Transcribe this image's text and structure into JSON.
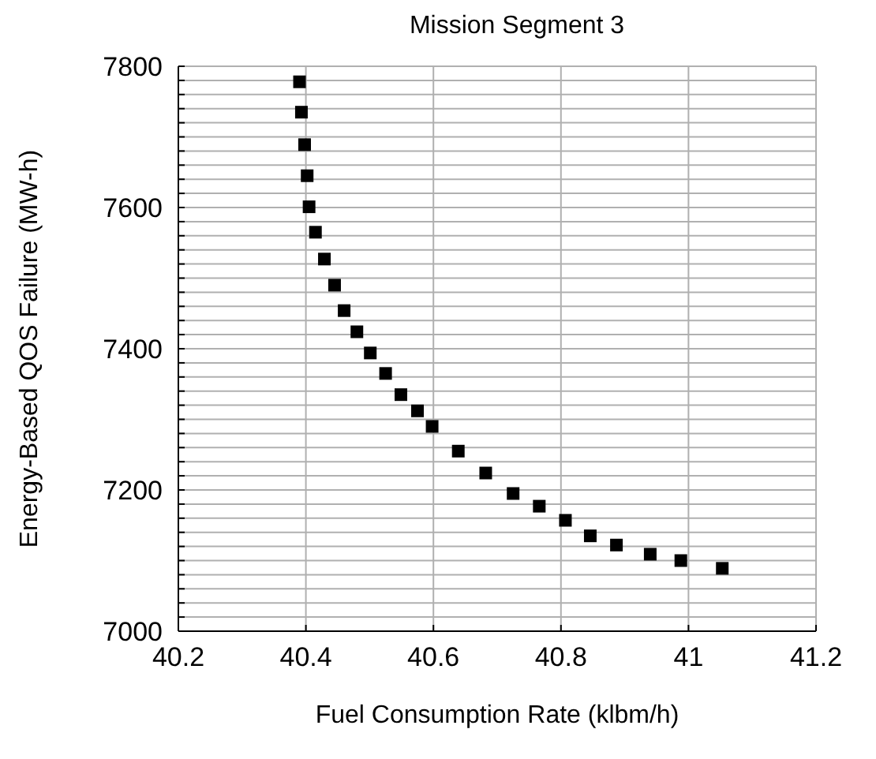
{
  "chart_data": {
    "type": "scatter",
    "title": "Mission Segment 3",
    "xlabel": "Fuel Consumption Rate (klbm/h)",
    "ylabel": "Energy-Based QOS Failure (MW-h)",
    "x": [
      40.39,
      40.393,
      40.398,
      40.402,
      40.405,
      40.415,
      40.429,
      40.445,
      40.46,
      40.48,
      40.501,
      40.525,
      40.549,
      40.575,
      40.598,
      40.639,
      40.682,
      40.725,
      40.766,
      40.807,
      40.846,
      40.887,
      40.94,
      40.988,
      41.053
    ],
    "series": [
      {
        "color": "#000000",
        "values": [
          7778,
          7735,
          7689,
          7645,
          7601,
          7565,
          7527,
          7490,
          7454,
          7424,
          7394,
          7365,
          7335,
          7312,
          7290,
          7255,
          7224,
          7195,
          7177,
          7157,
          7135,
          7122,
          7109,
          7100,
          7089
        ]
      }
    ],
    "xlim": [
      40.2,
      41.2
    ],
    "xticks": [
      40.2,
      40.4,
      40.6,
      40.8,
      41,
      41.2
    ],
    "ylim": [
      7000,
      7800
    ],
    "yticks": [
      7000,
      {
        "value": 7020,
        "label": null
      },
      {
        "value": 7040,
        "label": null
      },
      {
        "value": 7060,
        "label": null
      },
      {
        "value": 7080,
        "label": null
      },
      {
        "value": 7100,
        "label": null
      },
      {
        "value": 7120,
        "label": null
      },
      {
        "value": 7140,
        "label": null
      },
      {
        "value": 7160,
        "label": null
      },
      {
        "value": 7180,
        "label": null
      },
      7200,
      {
        "value": 7220,
        "label": null
      },
      {
        "value": 7240,
        "label": null
      },
      {
        "value": 7260,
        "label": null
      },
      {
        "value": 7280,
        "label": null
      },
      {
        "value": 7300,
        "label": null
      },
      {
        "value": 7320,
        "label": null
      },
      {
        "value": 7340,
        "label": null
      },
      {
        "value": 7360,
        "label": null
      },
      {
        "value": 7380,
        "label": null
      },
      7400,
      {
        "value": 7420,
        "label": null
      },
      {
        "value": 7440,
        "label": null
      },
      {
        "value": 7460,
        "label": null
      },
      {
        "value": 7480,
        "label": null
      },
      {
        "value": 7500,
        "label": null
      },
      {
        "value": 7520,
        "label": null
      },
      {
        "value": 7540,
        "label": null
      },
      {
        "value": 7560,
        "label": null
      },
      {
        "value": 7580,
        "label": null
      },
      7600,
      {
        "value": 7620,
        "label": null
      },
      {
        "value": 7640,
        "label": null
      },
      {
        "value": 7660,
        "label": null
      },
      {
        "value": 7680,
        "label": null
      },
      {
        "value": 7700,
        "label": null
      },
      {
        "value": 7720,
        "label": null
      },
      {
        "value": 7740,
        "label": null
      },
      {
        "value": 7760,
        "label": null
      },
      {
        "value": 7780,
        "label": null
      },
      7800
    ],
    "grid": true,
    "marker": "square",
    "legend": false
  }
}
